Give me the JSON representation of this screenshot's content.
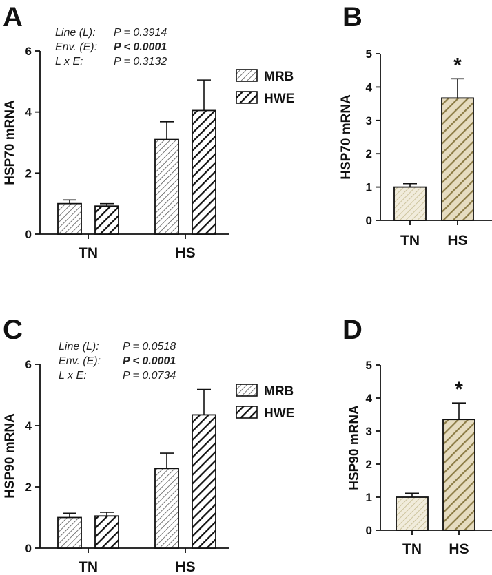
{
  "colors": {
    "axis": "#111111",
    "mrb_hatch": "#555555",
    "hwe_hatch": "#111111",
    "tn_fill_bg": "#f1ecdc",
    "tn_hatch": "#c5bb90",
    "hs_fill_bg": "#e6dcc0",
    "hs_hatch": "#8c7c46"
  },
  "chart_data": [
    {
      "panel": "A",
      "type": "bar",
      "ylabel": "HSP70 mRNA",
      "ylim": [
        0,
        6
      ],
      "yticks": [
        "0",
        "2",
        "4",
        "6"
      ],
      "categories": [
        "TN",
        "HS"
      ],
      "series": [
        {
          "name": "MRB",
          "values": [
            1.0,
            3.1
          ],
          "errors": [
            0.12,
            0.58
          ]
        },
        {
          "name": "HWE",
          "values": [
            0.92,
            4.05
          ],
          "errors": [
            0.08,
            1.0
          ]
        }
      ],
      "legend": [
        "MRB",
        "HWE"
      ],
      "stats": [
        {
          "label": "Line (L):",
          "value": "P = 0.3914",
          "bold": false
        },
        {
          "label": "Env. (E):",
          "value": "P < 0.0001",
          "bold": true
        },
        {
          "label": "L x E:",
          "value": "P = 0.3132",
          "bold": false
        }
      ]
    },
    {
      "panel": "B",
      "type": "bar",
      "ylabel": "HSP70 mRNA",
      "ylim": [
        0,
        5
      ],
      "yticks": [
        "0",
        "1",
        "2",
        "3",
        "4",
        "5"
      ],
      "categories": [
        "TN",
        "HS"
      ],
      "values": [
        1.0,
        3.67
      ],
      "errors": [
        0.1,
        0.58
      ],
      "annotation": "*"
    },
    {
      "panel": "C",
      "type": "bar",
      "ylabel": "HSP90 mRNA",
      "ylim": [
        0,
        6
      ],
      "yticks": [
        "0",
        "2",
        "4",
        "6"
      ],
      "categories": [
        "TN",
        "HS"
      ],
      "series": [
        {
          "name": "MRB",
          "values": [
            1.0,
            2.6
          ],
          "errors": [
            0.14,
            0.5
          ]
        },
        {
          "name": "HWE",
          "values": [
            1.05,
            4.35
          ],
          "errors": [
            0.12,
            0.83
          ]
        }
      ],
      "legend": [
        "MRB",
        "HWE"
      ],
      "stats": [
        {
          "label": "Line (L):",
          "value": "P = 0.0518",
          "bold": false
        },
        {
          "label": "Env. (E):",
          "value": "P < 0.0001",
          "bold": true
        },
        {
          "label": "L x E:",
          "value": "P = 0.0734",
          "bold": false
        }
      ]
    },
    {
      "panel": "D",
      "type": "bar",
      "ylabel": "HSP90 mRNA",
      "ylim": [
        0,
        5
      ],
      "yticks": [
        "0",
        "1",
        "2",
        "3",
        "4",
        "5"
      ],
      "categories": [
        "TN",
        "HS"
      ],
      "values": [
        1.0,
        3.35
      ],
      "errors": [
        0.12,
        0.5
      ],
      "annotation": "*"
    }
  ]
}
